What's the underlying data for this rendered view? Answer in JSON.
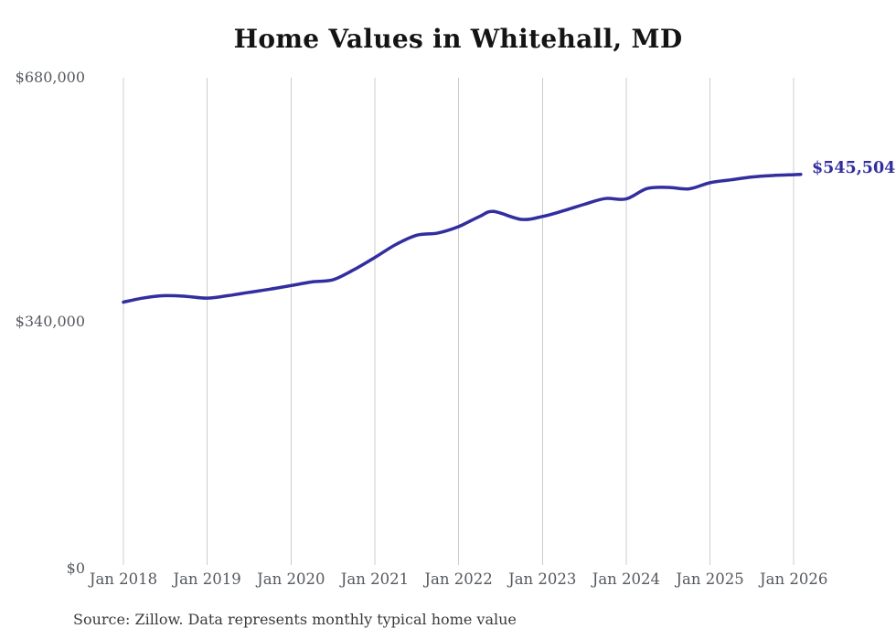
{
  "chart": {
    "title": "Home Values in Whitehall, MD",
    "end_value_label": "$545,504",
    "source_note": "Source: Zillow. Data represents monthly typical home value"
  },
  "colors": {
    "line": "#322e9f",
    "grid": "#cccccc",
    "title_text": "#141414",
    "axis_text": "#55595f",
    "end_label_text": "#322e9f",
    "source_text": "#3b3b3b"
  },
  "chart_data": {
    "type": "line",
    "title": "Home Values in Whitehall, MD",
    "xlabel": "",
    "ylabel": "",
    "ylim": [
      0,
      680000
    ],
    "grid": "vertical-only",
    "legend": "none",
    "y_tick_labels": [
      "$680,000",
      "$340,000",
      "$0"
    ],
    "y_tick_values": [
      680000,
      340000,
      0
    ],
    "x_tick_labels": [
      "Jan 2018",
      "Jan 2019",
      "Jan 2020",
      "Jan 2021",
      "Jan 2022",
      "Jan 2023",
      "Jan 2024",
      "Jan 2025",
      "Jan 2026"
    ],
    "end_value": 545504,
    "end_value_label": "$545,504",
    "series": [
      {
        "name": "Typical home value",
        "color": "#322e9f",
        "points": [
          [
            "2018-01",
            368000
          ],
          [
            "2018-04",
            374000
          ],
          [
            "2018-07",
            377000
          ],
          [
            "2018-10",
            376000
          ],
          [
            "2019-01",
            373500
          ],
          [
            "2019-04",
            377000
          ],
          [
            "2019-07",
            381500
          ],
          [
            "2019-10",
            386000
          ],
          [
            "2020-01",
            391000
          ],
          [
            "2020-04",
            396000
          ],
          [
            "2020-07",
            399000
          ],
          [
            "2020-10",
            413000
          ],
          [
            "2021-01",
            430000
          ],
          [
            "2021-04",
            448000
          ],
          [
            "2021-07",
            461000
          ],
          [
            "2021-10",
            464000
          ],
          [
            "2022-01",
            473000
          ],
          [
            "2022-04",
            487000
          ],
          [
            "2022-06",
            494000
          ],
          [
            "2022-10",
            483000
          ],
          [
            "2023-01",
            487000
          ],
          [
            "2023-04",
            495000
          ],
          [
            "2023-07",
            504000
          ],
          [
            "2023-10",
            512000
          ],
          [
            "2024-01",
            511500
          ],
          [
            "2024-04",
            526000
          ],
          [
            "2024-07",
            527500
          ],
          [
            "2024-10",
            525500
          ],
          [
            "2025-01",
            534000
          ],
          [
            "2025-04",
            538000
          ],
          [
            "2025-07",
            542000
          ],
          [
            "2025-10",
            544000
          ],
          [
            "2026-01",
            545200
          ],
          [
            "2026-02",
            545504
          ]
        ]
      }
    ]
  }
}
